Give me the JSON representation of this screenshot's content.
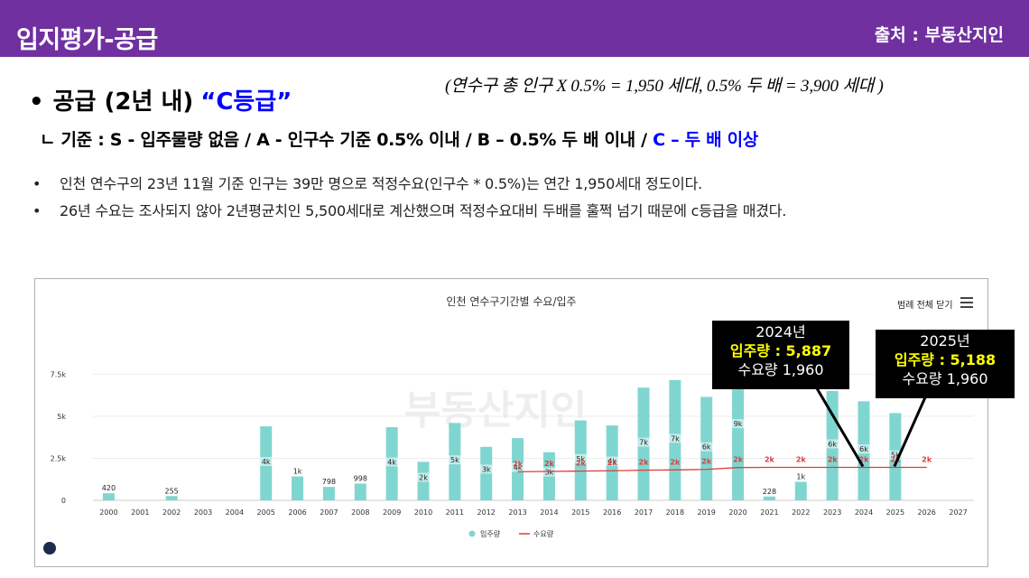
{
  "header": {
    "title": "입지평가-공급",
    "source": "출처 : 부동산지인"
  },
  "formula": "(연수구 총 인구 X 0.5% = 1,950 세대, 0.5% 두 배 = 3,900 세대 )",
  "heading": {
    "bullet": "•",
    "label": "공급 (2년 내)",
    "grade": "“C등급”"
  },
  "criteria": {
    "prefix": "ㄴ",
    "text": "기준 : S - 입주물량 없음 / A - 인구수 기준 0.5% 이내 / B – 0.5% 두 배 이내 / ",
    "highlight": "C – 두 배 이상"
  },
  "notes": [
    "인천 연수구의 23년 11월 기준 인구는 39만 명으로 적정수요(인구수 * 0.5%)는 연간 1,950세대 정도이다.",
    "26년 수요는 조사되지 않아 2년평균치인 5,500세대로 계산했으며 적정수요대비 두배를 훌쩍 넘기 때문에 c등급을 매겼다."
  ],
  "note_bullet": "•",
  "chart_ui": {
    "legend_toggle": "범례 전체 닫기",
    "watermark": "부동산지인"
  },
  "callouts": [
    {
      "year": "2024년",
      "supply": "입주량 : 5,887",
      "demand": "수요량 1,960"
    },
    {
      "year": "2025년",
      "supply": "입주량 : 5,188",
      "demand": "수요량 1,960"
    }
  ],
  "colors": {
    "header_bg": "#7030a0",
    "bar": "#7fd6d0",
    "demand_line": "#e03c3c",
    "highlight_blue": "#0000ff",
    "callout_highlight": "#ffff00"
  },
  "chart_data": {
    "type": "bar",
    "title": "인천 연수구기간별 수요/입주",
    "categories": [
      "2000",
      "2001",
      "2002",
      "2003",
      "2004",
      "2005",
      "2006",
      "2007",
      "2008",
      "2009",
      "2010",
      "2011",
      "2012",
      "2013",
      "2014",
      "2015",
      "2016",
      "2017",
      "2018",
      "2019",
      "2020",
      "2021",
      "2022",
      "2023",
      "2024",
      "2025",
      "2026",
      "2027"
    ],
    "y_ticks": [
      "0",
      "2.5k",
      "5k",
      "7.5k"
    ],
    "ylim": [
      0,
      8000
    ],
    "legend_placement": "bottom-center",
    "series": [
      {
        "name": "입주량",
        "kind": "bar",
        "values": [
          420,
          0,
          255,
          0,
          0,
          4400,
          1420,
          798,
          998,
          4350,
          2290,
          4600,
          3180,
          3700,
          2860,
          4750,
          4450,
          6700,
          7150,
          6150,
          8900,
          228,
          1100,
          6500,
          5887,
          5188,
          0,
          0
        ],
        "labels": [
          "420",
          "",
          "255",
          "",
          "",
          "4k",
          "1k",
          "798",
          "998",
          "4k",
          "2k",
          "5k",
          "3k",
          "4k",
          "3k",
          "5k",
          "4k",
          "7k",
          "7k",
          "6k",
          "9k",
          "228",
          "1k",
          "6k",
          "6k",
          "5k",
          "",
          ""
        ]
      },
      {
        "name": "수요량",
        "kind": "line",
        "values": [
          null,
          null,
          null,
          null,
          null,
          null,
          null,
          null,
          null,
          null,
          null,
          null,
          null,
          1700,
          1720,
          1740,
          1760,
          1790,
          1810,
          1840,
          1950,
          1960,
          1960,
          1960,
          1960,
          1960,
          1960,
          null
        ],
        "labels": [
          "",
          "",
          "",
          "",
          "",
          "",
          "",
          "",
          "",
          "",
          "",
          "",
          "",
          "2k",
          "2k",
          "2k",
          "2k",
          "2k",
          "2k",
          "2k",
          "2k",
          "2k",
          "2k",
          "2k",
          "2k",
          "2k",
          "2k",
          ""
        ]
      }
    ]
  }
}
